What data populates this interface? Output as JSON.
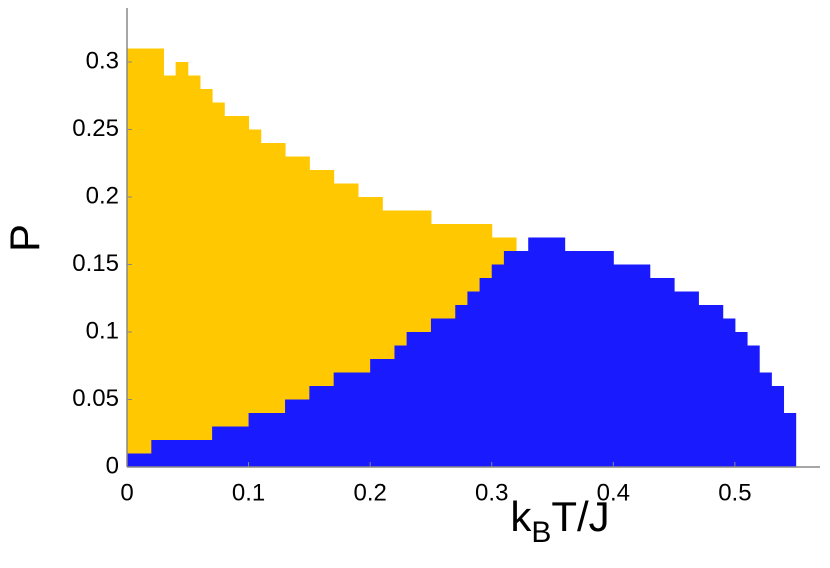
{
  "chart_data": {
    "type": "histogram-overlay",
    "x_label": [
      "k",
      "B",
      "T/J"
    ],
    "y_label": "P",
    "bins": [
      0,
      0.01,
      0.02,
      0.03,
      0.04,
      0.05,
      0.06,
      0.07,
      0.08,
      0.09,
      0.1,
      0.11,
      0.12,
      0.13,
      0.14,
      0.15,
      0.16,
      0.17,
      0.18,
      0.19,
      0.2,
      0.21,
      0.22,
      0.23,
      0.24,
      0.25,
      0.26,
      0.27,
      0.28,
      0.29,
      0.3,
      0.31,
      0.32,
      0.33,
      0.34,
      0.35,
      0.36,
      0.37,
      0.38,
      0.39,
      0.4,
      0.41,
      0.42,
      0.43,
      0.44,
      0.45,
      0.46,
      0.47,
      0.48,
      0.49,
      0.5,
      0.51,
      0.52,
      0.53,
      0.54,
      0.55
    ],
    "series": [
      {
        "color": "#ffc800",
        "values": [
          0.31,
          0.31,
          0.31,
          0.29,
          0.3,
          0.29,
          0.28,
          0.27,
          0.26,
          0.26,
          0.25,
          0.24,
          0.24,
          0.23,
          0.23,
          0.22,
          0.22,
          0.21,
          0.21,
          0.2,
          0.2,
          0.19,
          0.19,
          0.19,
          0.19,
          0.18,
          0.18,
          0.18,
          0.18,
          0.18,
          0.17,
          0.17,
          0,
          0,
          0,
          0,
          0,
          0,
          0,
          0,
          0,
          0,
          0,
          0,
          0,
          0,
          0,
          0,
          0,
          0,
          0,
          0,
          0,
          0,
          0
        ]
      },
      {
        "color": "#1a1aff",
        "values": [
          0.01,
          0.01,
          0.02,
          0.02,
          0.02,
          0.02,
          0.02,
          0.03,
          0.03,
          0.03,
          0.04,
          0.04,
          0.04,
          0.05,
          0.05,
          0.06,
          0.06,
          0.07,
          0.07,
          0.07,
          0.08,
          0.08,
          0.09,
          0.1,
          0.1,
          0.11,
          0.11,
          0.12,
          0.13,
          0.14,
          0.15,
          0.16,
          0.16,
          0.17,
          0.17,
          0.17,
          0.16,
          0.16,
          0.16,
          0.16,
          0.15,
          0.15,
          0.15,
          0.14,
          0.14,
          0.13,
          0.13,
          0.12,
          0.12,
          0.11,
          0.1,
          0.09,
          0.07,
          0.06,
          0.04
        ]
      }
    ],
    "xlim": [
      0,
      0.57
    ],
    "ylim": [
      0,
      0.34
    ],
    "xticks": [
      0,
      0.1,
      0.2,
      0.3,
      0.4,
      0.5
    ],
    "yticks": [
      0,
      0.05,
      0.1,
      0.15,
      0.2,
      0.25,
      0.3
    ]
  }
}
